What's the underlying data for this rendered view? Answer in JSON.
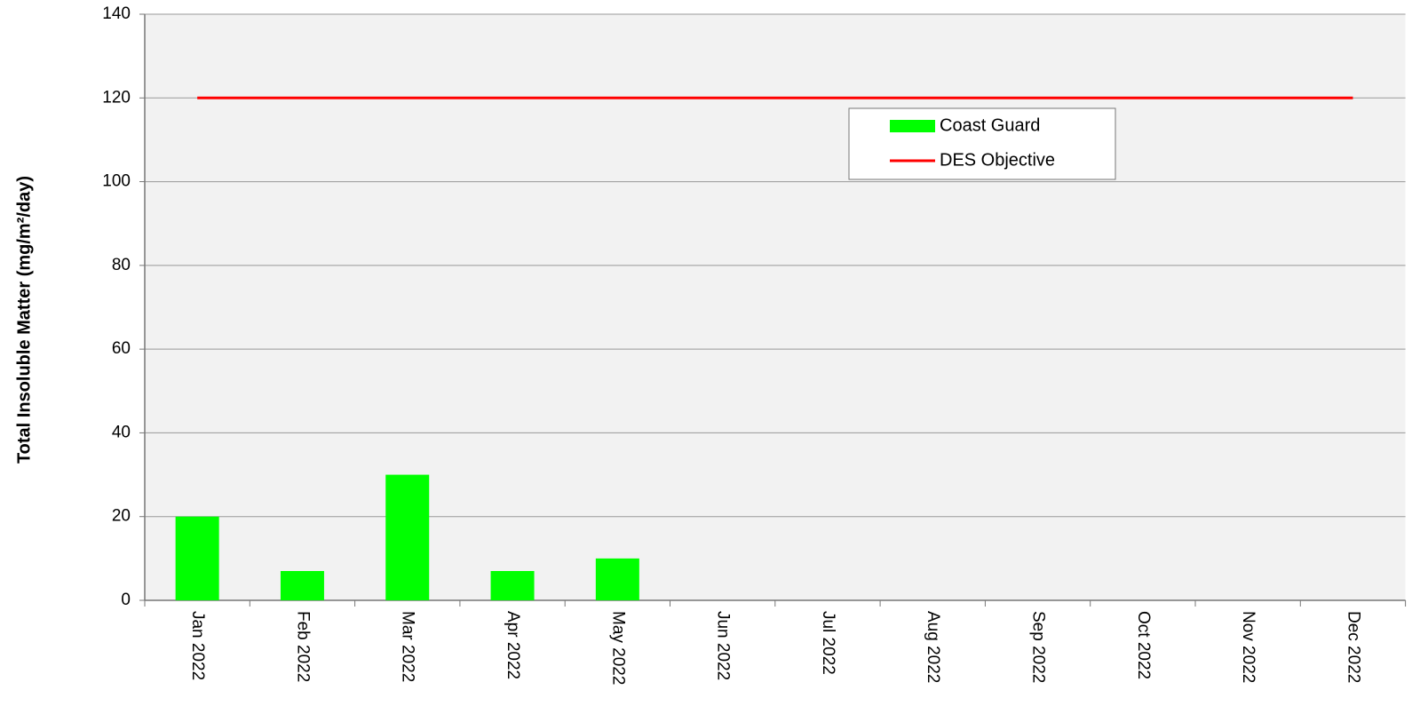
{
  "chart_data": {
    "type": "bar",
    "ylabel": "Total Insoluble Matter (mg/m²/day)",
    "categories": [
      "Jan 2022",
      "Feb 2022",
      "Mar 2022",
      "Apr 2022",
      "May 2022",
      "Jun 2022",
      "Jul 2022",
      "Aug 2022",
      "Sep 2022",
      "Oct 2022",
      "Nov 2022",
      "Dec 2022"
    ],
    "series": [
      {
        "name": "Coast Guard",
        "type": "bar",
        "color": "#00ff00",
        "values": [
          20,
          7,
          30,
          7,
          10,
          null,
          null,
          null,
          null,
          null,
          null,
          null
        ]
      },
      {
        "name": "DES Objective",
        "type": "line",
        "color": "#ff0000",
        "values": [
          120,
          120,
          120,
          120,
          120,
          120,
          120,
          120,
          120,
          120,
          120,
          120
        ]
      }
    ],
    "ylim": [
      0,
      140
    ],
    "yticks": [
      0,
      20,
      40,
      60,
      80,
      100,
      120,
      140
    ],
    "grid": true
  }
}
